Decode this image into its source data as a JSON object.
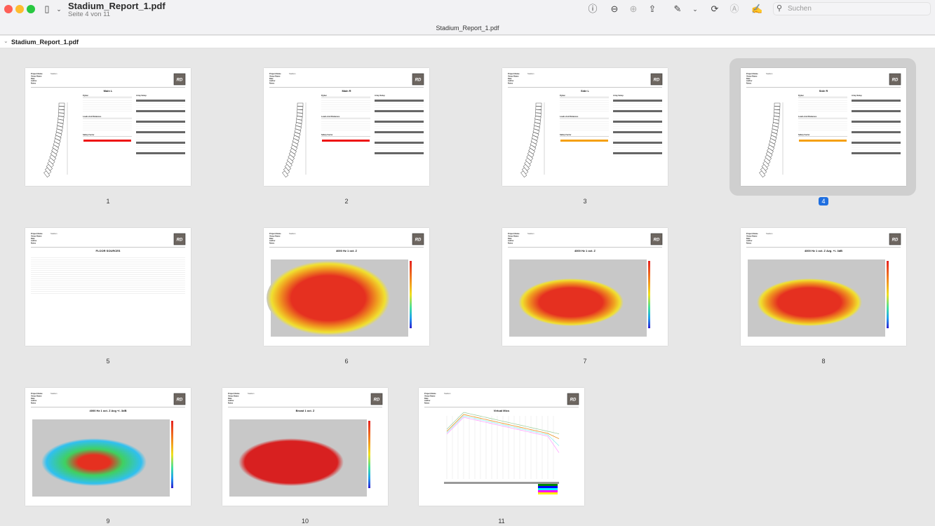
{
  "window": {
    "title": "Stadium_Report_1.pdf",
    "subtitle": "Seite 4 von 11",
    "center_title": "Stadium_Report_1.pdf",
    "traffic_colors": [
      "#fe5f57",
      "#febc2e",
      "#28c840"
    ]
  },
  "toolbar": {
    "search_placeholder": "Suchen",
    "icons": [
      "sidebar-icon",
      "chevron-down-icon",
      "info-icon",
      "zoom-out-icon",
      "zoom-in-icon",
      "share-icon",
      "markup-pen-icon",
      "chevron-down-icon",
      "rotate-icon",
      "annotate-icon",
      "signature-icon"
    ]
  },
  "sidebar": {
    "file": "Stadium_Report_1.pdf"
  },
  "selected_page": 4,
  "header_fields": {
    "labels": [
      "Project Name",
      "Venue Name",
      "Date",
      "Author",
      "Notes"
    ],
    "value": "Stadium",
    "logo": "RD"
  },
  "pages": [
    {
      "n": "1",
      "title": "Main L",
      "kind": "array",
      "safety": "#ee1111"
    },
    {
      "n": "2",
      "title": "Main R",
      "kind": "array",
      "safety": "#ee1111"
    },
    {
      "n": "3",
      "title": "Side L",
      "kind": "array",
      "safety": "#f5a010"
    },
    {
      "n": "4",
      "title": "Side R",
      "kind": "array",
      "safety": "#f5a010"
    },
    {
      "n": "5",
      "title": "FLOOR SOURCES",
      "kind": "table"
    },
    {
      "n": "6",
      "title": "4000 Hz 1 oct. Z",
      "kind": "top"
    },
    {
      "n": "7",
      "title": "4000 Hz 1 oct. Z",
      "kind": "persp"
    },
    {
      "n": "8",
      "title": "4000 Hz 1 oct. Z Avg. +/- 3dB",
      "kind": "persp"
    },
    {
      "n": "9",
      "title": "4000 Hz 1 oct. Z Avg +/- 3dB",
      "kind": "green"
    },
    {
      "n": "10",
      "title": "Broad 1 oct. Z",
      "kind": "red"
    },
    {
      "n": "11",
      "title": "Virtual Mics",
      "kind": "chart"
    }
  ],
  "array_sections": {
    "mid": [
      "Flybar",
      "Loads And Distances",
      "Safety Factor"
    ],
    "right": "Array Setup"
  }
}
